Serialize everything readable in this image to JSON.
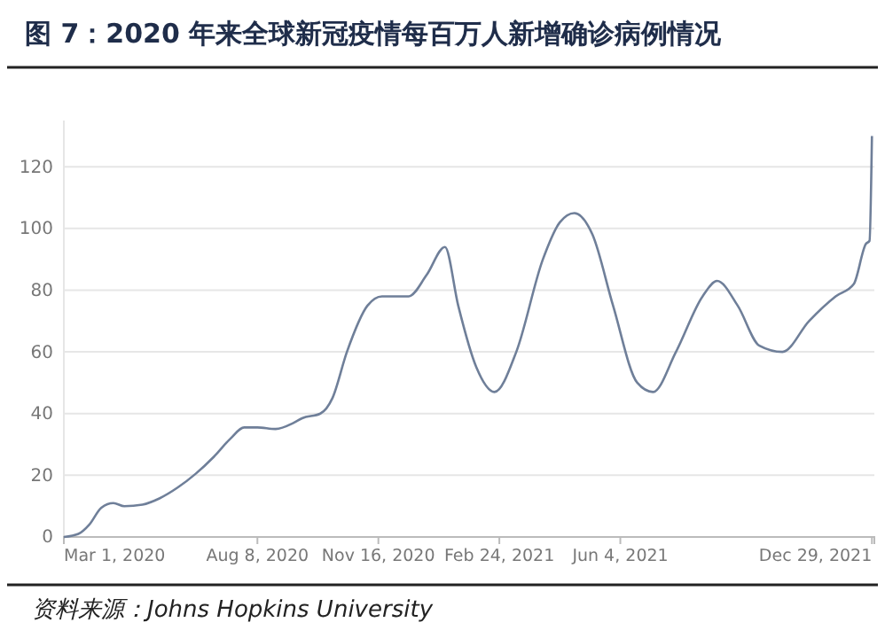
{
  "chart_data": {
    "type": "line",
    "title": "图 7：2020 年来全球新冠疫情每百万人新增确诊病例情况",
    "annotations": [
      "资料来源：Johns Hopkins University"
    ],
    "x": [
      "2020-03-01",
      "2020-03-13",
      "2020-03-22",
      "2020-04-01",
      "2020-04-11",
      "2020-04-20",
      "2020-05-05",
      "2020-05-19",
      "2020-06-03",
      "2020-06-18",
      "2020-07-03",
      "2020-07-17",
      "2020-07-28",
      "2020-08-08",
      "2020-08-23",
      "2020-09-07",
      "2020-09-14",
      "2020-09-29",
      "2020-10-09",
      "2020-10-21",
      "2020-11-07",
      "2020-11-19",
      "2020-12-11",
      "2020-12-26",
      "2021-01-10",
      "2021-01-21",
      "2021-02-05",
      "2021-02-20",
      "2021-03-10",
      "2021-04-01",
      "2021-04-15",
      "2021-04-27",
      "2021-05-12",
      "2021-05-29",
      "2021-06-18",
      "2021-07-01",
      "2021-07-20",
      "2021-08-11",
      "2021-08-23",
      "2021-09-09",
      "2021-09-27",
      "2021-10-16",
      "2021-11-07",
      "2021-11-29",
      "2021-12-14",
      "2021-12-24",
      "2021-12-27",
      "2021-12-29"
    ],
    "series": [
      {
        "color": "#6f7f99",
        "values": [
          0,
          1,
          4,
          9.5,
          11,
          10,
          10.5,
          12.5,
          16,
          20.5,
          26,
          32,
          35.5,
          35.5,
          35,
          37,
          38.5,
          40,
          45,
          60,
          75,
          78,
          78,
          85,
          94,
          75,
          55,
          47,
          60,
          90,
          102,
          105,
          98,
          75,
          50,
          47,
          60,
          78,
          83,
          75,
          62,
          60,
          70,
          78,
          82,
          95,
          96,
          130
        ]
      }
    ],
    "xlim": [
      "2020-03-01",
      "2021-12-31"
    ],
    "xticks": [
      {
        "value": "2020-03-01",
        "label": "Mar 1, 2020"
      },
      {
        "value": "2020-08-08",
        "label": "Aug 8, 2020"
      },
      {
        "value": "2020-11-16",
        "label": "Nov 16, 2020"
      },
      {
        "value": "2021-02-24",
        "label": "Feb 24, 2021"
      },
      {
        "value": "2021-06-04",
        "label": "Jun 4, 2021"
      },
      {
        "value": "2021-12-29",
        "label": "Dec 29, 2021"
      }
    ],
    "ylim": [
      0,
      135
    ],
    "yticks": [
      0,
      20,
      40,
      60,
      80,
      100,
      120
    ],
    "grid": "y",
    "marker": "none",
    "line_style": "solid"
  }
}
